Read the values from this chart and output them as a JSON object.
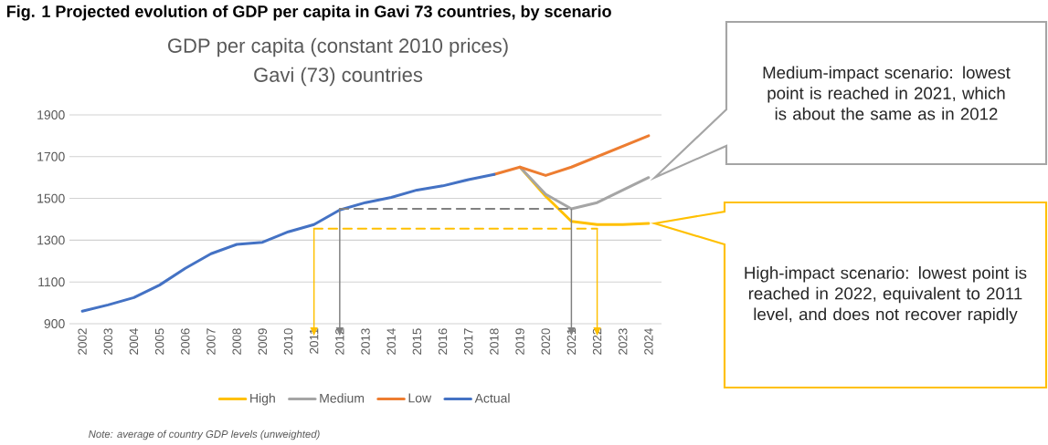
{
  "chart_data": {
    "type": "line",
    "title": "GDP per capita (constant 2010 prices)",
    "subtitle": "Gavi (73) countries",
    "xlim": [
      2001.5,
      2024.5
    ],
    "xticks": [
      2002,
      2003,
      2004,
      2005,
      2006,
      2007,
      2008,
      2009,
      2010,
      2011,
      2012,
      2013,
      2014,
      2015,
      2016,
      2017,
      2018,
      2019,
      2020,
      2021,
      2022,
      2023,
      2024
    ],
    "ylim": [
      900,
      1900
    ],
    "yticks": [
      900,
      1100,
      1300,
      1500,
      1700,
      1900
    ],
    "series": [
      {
        "name": "High",
        "color": "#ffc000",
        "x": [
          2019,
          2020,
          2021,
          2022,
          2023,
          2024
        ],
        "values": [
          1650,
          1510,
          1390,
          1375,
          1375,
          1380
        ]
      },
      {
        "name": "Medium",
        "color": "#a5a5a5",
        "x": [
          2019,
          2020,
          2021,
          2022,
          2023,
          2024
        ],
        "values": [
          1650,
          1520,
          1450,
          1480,
          1540,
          1600
        ]
      },
      {
        "name": "Low",
        "color": "#ed7d31",
        "x": [
          2018,
          2019,
          2020,
          2021,
          2022,
          2023,
          2024
        ],
        "values": [
          1615,
          1650,
          1610,
          1650,
          1700,
          1750,
          1800
        ]
      },
      {
        "name": "Actual",
        "color": "#4472c4",
        "x": [
          2002,
          2003,
          2004,
          2005,
          2006,
          2007,
          2008,
          2009,
          2010,
          2011,
          2012,
          2013,
          2014,
          2015,
          2016,
          2017,
          2018
        ],
        "values": [
          960,
          990,
          1025,
          1085,
          1165,
          1235,
          1280,
          1290,
          1340,
          1375,
          1445,
          1480,
          1505,
          1540,
          1560,
          1590,
          1615
        ]
      },
      {
        "color": "#808080",
        "line_style": "dashed",
        "x": [
          2012,
          2021
        ],
        "values": [
          1450,
          1450
        ]
      },
      {
        "color": "#ffc000",
        "line_style": "dashed",
        "x": [
          2011,
          2022
        ],
        "values": [
          1355,
          1355
        ]
      }
    ],
    "annotations": [
      "Fig. 1 Projected evolution of GDP per capita in Gavi 73 countries, by scenario",
      "Medium-impact scenario: lowest point is reached in 2021, which is about the same as in 2012",
      "High-impact scenario: lowest point is reached in 2022, equivalent to 2011 level, and does not recover rapidly",
      "Note: average of country GDP levels (unweighted)"
    ],
    "grid": "y",
    "legend": "bottom",
    "marker": "none"
  }
}
